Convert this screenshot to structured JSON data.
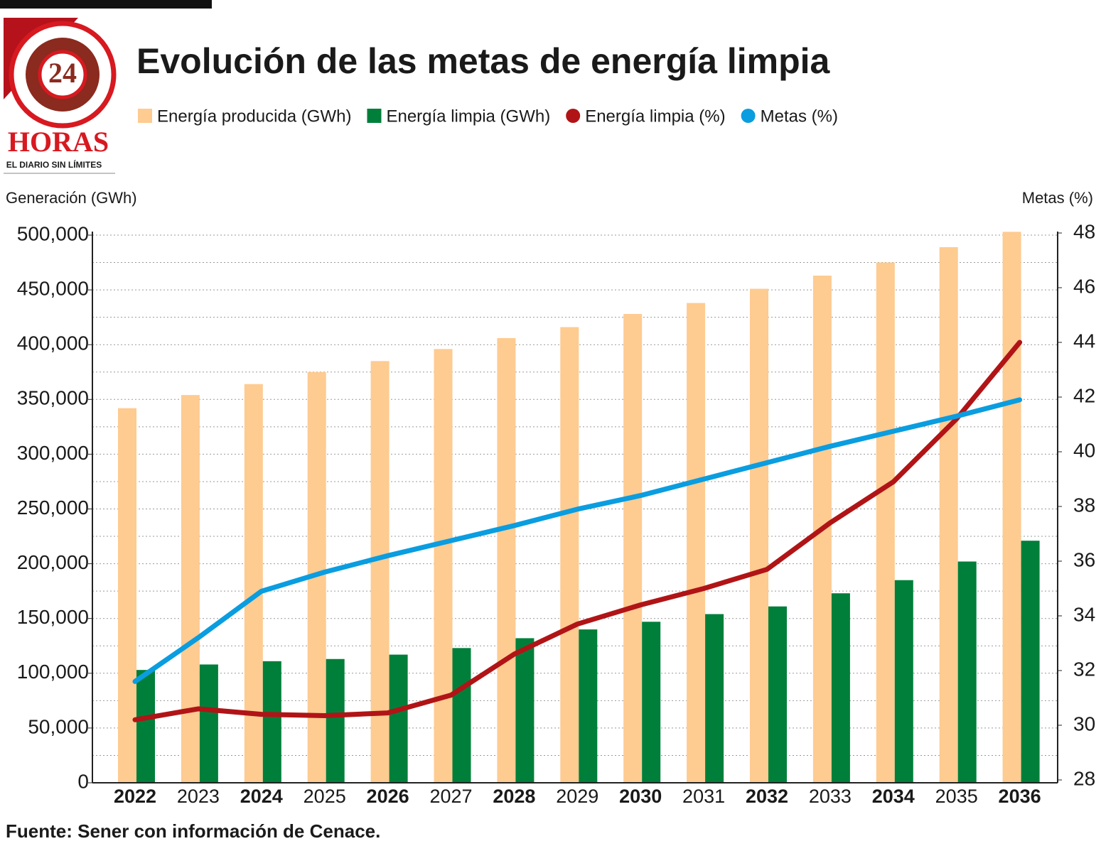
{
  "logo": {
    "number": "24",
    "name": "HORAS",
    "tagline": "EL DIARIO SIN LÍMITES"
  },
  "chart_data": {
    "type": "bar",
    "title": "Evolución de las metas de energía limpia",
    "y_label": "Generación (GWh)",
    "y2_label": "Metas (%)",
    "source": "Fuente: Sener con información de Cenace.",
    "categories": [
      "2022",
      "2023",
      "2024",
      "2025",
      "2026",
      "2027",
      "2028",
      "2029",
      "2030",
      "2031",
      "2032",
      "2033",
      "2034",
      "2035",
      "2036"
    ],
    "series": [
      {
        "name": "Energía producida (GWh)",
        "type": "bar",
        "color": "#fecb91",
        "values": [
          342000,
          354000,
          364000,
          375000,
          385000,
          396000,
          406000,
          416000,
          428000,
          438000,
          451000,
          463000,
          475000,
          489000,
          503000
        ]
      },
      {
        "name": "Energía limpia (GWh)",
        "type": "bar",
        "color": "#007f3a",
        "values": [
          103000,
          108000,
          111000,
          113000,
          117000,
          123000,
          132000,
          140000,
          147000,
          154000,
          161000,
          173000,
          185000,
          202000,
          221000
        ]
      },
      {
        "name": "Energía limpia (%)",
        "type": "line",
        "axis": "y2",
        "color": "#b11416",
        "values": [
          30.2,
          30.6,
          30.4,
          30.35,
          30.45,
          31.1,
          32.6,
          33.7,
          34.4,
          35.0,
          35.7,
          37.4,
          38.9,
          41.2,
          44.0
        ]
      },
      {
        "name": "Metas (%)",
        "type": "line",
        "axis": "y2",
        "color": "#0a9de0",
        "values": [
          31.6,
          33.2,
          34.9,
          35.6,
          36.2,
          36.75,
          37.3,
          37.9,
          38.4,
          39.0,
          39.6,
          40.2,
          40.75,
          41.3,
          41.9
        ]
      }
    ],
    "ylim": [
      0,
      500000
    ],
    "yticks": [
      {
        "value": 0,
        "label": "0"
      },
      {
        "value": 50000,
        "label": "50,000"
      },
      {
        "value": 100000,
        "label": "100,000"
      },
      {
        "value": 150000,
        "label": "150,000"
      },
      {
        "value": 200000,
        "label": "200,000"
      },
      {
        "value": 250000,
        "label": "250,000"
      },
      {
        "value": 300000,
        "label": "300,000"
      },
      {
        "value": 350000,
        "label": "350,000"
      },
      {
        "value": 400000,
        "label": "400,000"
      },
      {
        "value": 450000,
        "label": "450,000"
      },
      {
        "value": 500000,
        "label": "500,000"
      }
    ],
    "minor_yticks": [
      25000,
      75000,
      125000,
      175000,
      225000,
      275000,
      325000,
      375000,
      425000,
      475000
    ],
    "y2lim": [
      28,
      48
    ],
    "y2ticks": [
      28,
      30,
      32,
      34,
      36,
      38,
      40,
      42,
      44,
      46,
      48
    ],
    "grid": true
  }
}
